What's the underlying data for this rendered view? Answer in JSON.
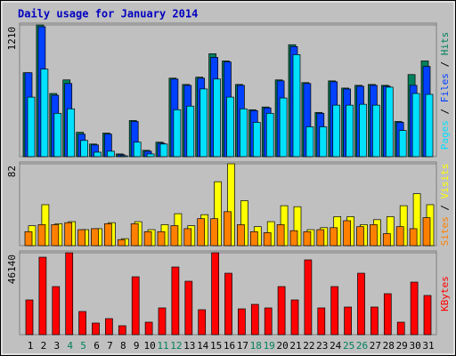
{
  "chart_data": {
    "type": "bar",
    "title": "Daily usage for January 2014",
    "categories": [
      "1",
      "2",
      "3",
      "4",
      "5",
      "6",
      "7",
      "8",
      "9",
      "10",
      "11",
      "12",
      "13",
      "14",
      "15",
      "16",
      "17",
      "18",
      "19",
      "20",
      "21",
      "22",
      "23",
      "24",
      "25",
      "26",
      "27",
      "28",
      "29",
      "30",
      "31"
    ],
    "weekend_categories": [
      "4",
      "5",
      "11",
      "12",
      "18",
      "19",
      "25",
      "26"
    ],
    "weekday_color": "#000000",
    "weekend_color": "#00805c",
    "legend_separator": " / ",
    "panels": [
      {
        "ylim": [
          0,
          1210
        ],
        "yticks": [
          1210
        ],
        "legend_order": [
          2,
          1,
          0
        ],
        "series": [
          {
            "name": "Hits",
            "color": "#00805c",
            "values": [
              771,
              1210,
              580,
              705,
              224,
              116,
              216,
              25,
              332,
              58,
              133,
              721,
              663,
              730,
              945,
              879,
              663,
              431,
              456,
              705,
              1028,
              680,
              406,
              696,
              630,
              655,
              663,
              655,
              323,
              754,
              879
            ]
          },
          {
            "name": "Files",
            "color": "#0040ff",
            "values": [
              771,
              1194,
              564,
              672,
              207,
              108,
              207,
              17,
              323,
              50,
              124,
              713,
              655,
              721,
              912,
              870,
              655,
              423,
              448,
              696,
              1011,
              672,
              398,
              688,
              622,
              647,
              655,
              647,
              315,
              655,
              829
            ]
          },
          {
            "name": "Pages",
            "color": "#00e0ff",
            "values": [
              547,
              804,
              398,
              439,
              149,
              41,
              50,
              8,
              133,
              25,
              116,
              431,
              464,
              622,
              713,
              547,
              439,
              315,
              398,
              539,
              937,
              274,
              274,
              473,
              473,
              481,
              473,
              638,
              240,
              580,
              572
            ]
          }
        ]
      },
      {
        "ylim": [
          0,
          82
        ],
        "yticks": [
          82
        ],
        "legend_order": [
          1,
          0
        ],
        "series": [
          {
            "name": "Visits",
            "color": "#ffff00",
            "values": [
              20,
              41,
              22,
              24,
              16,
              17,
              23,
              7,
              24,
              16,
              21,
              32,
              20,
              31,
              64,
              82,
              45,
              19,
              24,
              40,
              39,
              16,
              18,
              29,
              29,
              21,
              26,
              29,
              40,
              52,
              41
            ]
          },
          {
            "name": "Sites",
            "color": "#ff8000",
            "values": [
              14,
              21,
              21,
              23,
              16,
              17,
              22,
              6,
              22,
              14,
              14,
              20,
              17,
              27,
              27,
              34,
              21,
              14,
              13,
              21,
              15,
              14,
              16,
              18,
              25,
              19,
              21,
              12,
              19,
              17,
              28
            ]
          }
        ]
      },
      {
        "ylim": [
          0,
          46140
        ],
        "yticks": [
          46140
        ],
        "legend_order": [
          0
        ],
        "series": [
          {
            "name": "KBytes",
            "color": "#ff0000",
            "values": [
              19560,
              43630,
              27080,
              46140,
              13040,
              6520,
              9030,
              5020,
              32600,
              7020,
              15050,
              38110,
              30090,
              14040,
              46140,
              34600,
              14540,
              17050,
              15050,
              27080,
              19560,
              42130,
              15050,
              27080,
              15550,
              34600,
              15550,
              23070,
              7020,
              29590,
              22070
            ]
          }
        ]
      }
    ]
  }
}
